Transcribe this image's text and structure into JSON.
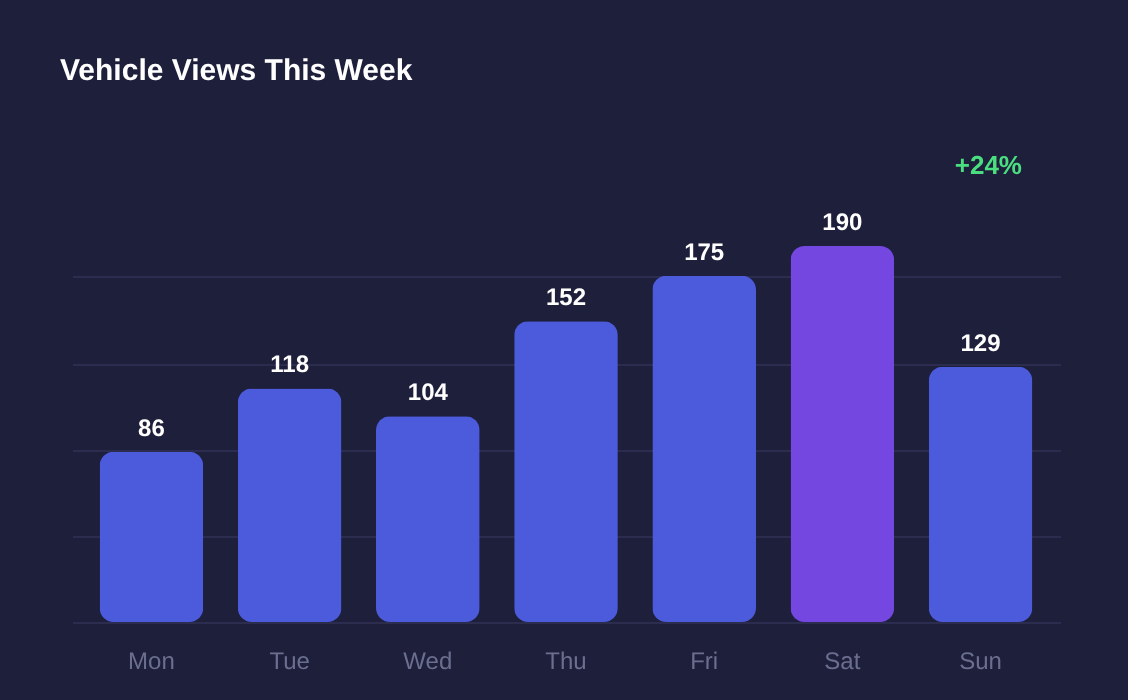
{
  "chart_data": {
    "type": "bar",
    "title": "Vehicle Views This Week",
    "categories": [
      "Mon",
      "Tue",
      "Wed",
      "Thu",
      "Fri",
      "Sat",
      "Sun"
    ],
    "values": [
      86,
      118,
      104,
      152,
      175,
      190,
      129
    ],
    "colors": [
      "#4b5bdc",
      "#4b5bdc",
      "#4b5bdc",
      "#4b5bdc",
      "#4b5bdc",
      "#7447e0",
      "#4b5bdc"
    ],
    "yticks": [
      {
        "value": 0,
        "label": null
      },
      {
        "value": 43.6,
        "label": null
      },
      {
        "value": 87.2,
        "label": null
      },
      {
        "value": 130.8,
        "label": null
      },
      {
        "value": 174.4,
        "label": null
      }
    ],
    "tick_labels": "x",
    "grid": "y",
    "data_labels": true,
    "annotations": [
      "+24%"
    ]
  }
}
